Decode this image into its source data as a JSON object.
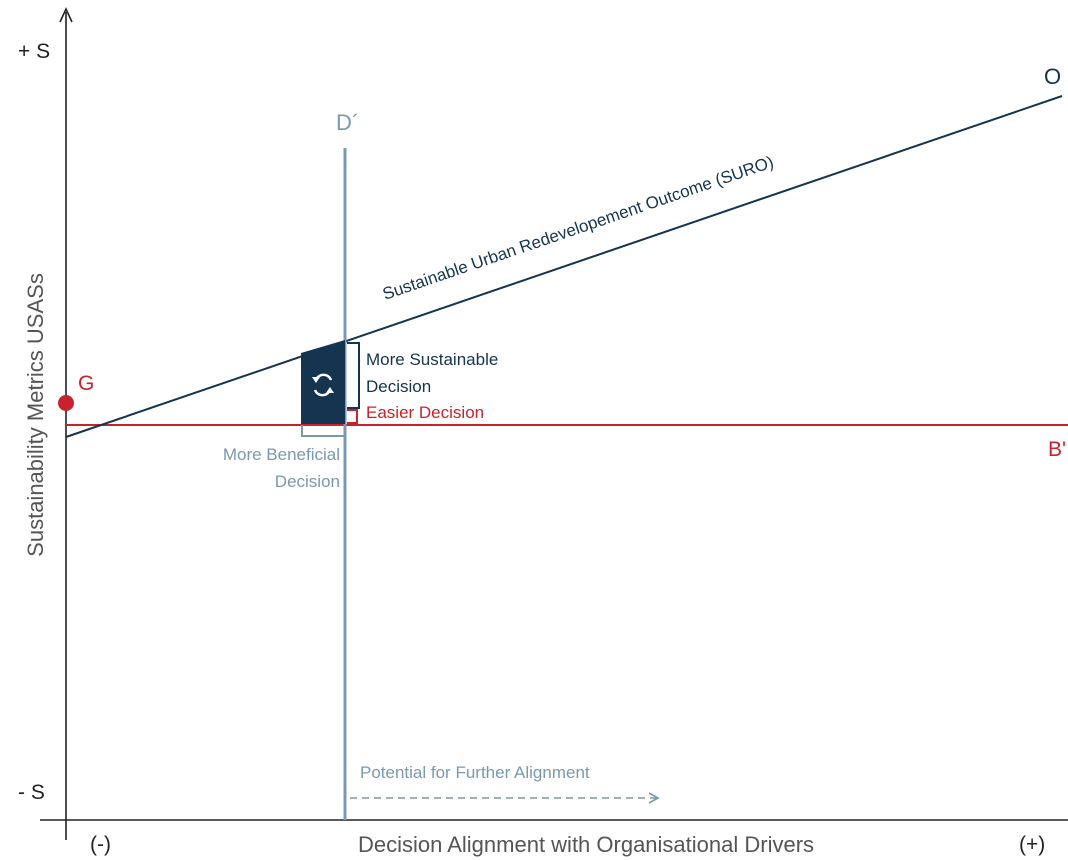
{
  "axes": {
    "y_top": "+ S",
    "y_bottom": "- S",
    "y_title": "Sustainability Metrics USASs",
    "x_left": "(-)",
    "x_right": "(+)",
    "x_title": "Decision Alignment with Organisational Drivers"
  },
  "lines": {
    "suro_label": "Sustainable Urban Redevelopement Outcome (SURO)",
    "suro_end": "O",
    "decision_top": "D´",
    "baseline_end": "B'",
    "goal_point": "G"
  },
  "annotations": {
    "more_sustainable_line1": "More Sustainable",
    "more_sustainable_line2": "Decision",
    "easier": "Easier Decision",
    "beneficial_line1": "More Beneficial",
    "beneficial_line2": "Decision",
    "potential": "Potential for Further Alignment"
  },
  "colors": {
    "navy": "#14344f",
    "red": "#c8232c",
    "steel": "#7b98b1",
    "axis": "#222222",
    "text": "#333333"
  }
}
